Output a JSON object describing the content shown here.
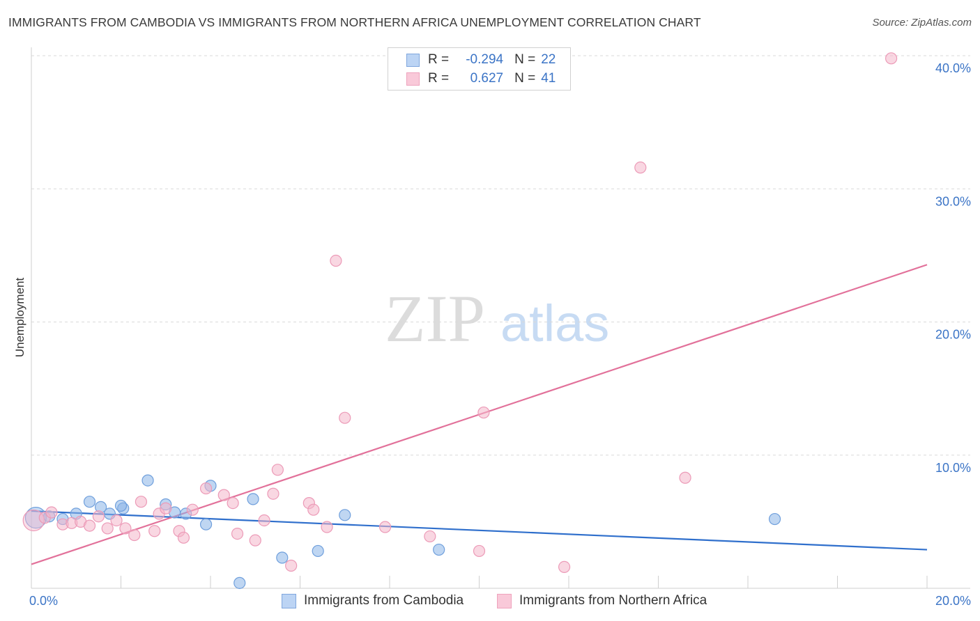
{
  "header": {
    "title": "IMMIGRANTS FROM CAMBODIA VS IMMIGRANTS FROM NORTHERN AFRICA UNEMPLOYMENT CORRELATION CHART",
    "source": "Source: ZipAtlas.com"
  },
  "watermark": {
    "part1": "ZIP",
    "part2": "atlas"
  },
  "stats_legend": {
    "rows": [
      {
        "r_label": "R =",
        "r_value": "-0.294",
        "n_label": "N =",
        "n_value": "22"
      },
      {
        "r_label": "R =",
        "r_value": "0.627",
        "n_label": "N =",
        "n_value": "41"
      }
    ]
  },
  "chart_data": {
    "type": "scatter",
    "title": "IMMIGRANTS FROM CAMBODIA VS IMMIGRANTS FROM NORTHERN AFRICA UNEMPLOYMENT CORRELATION CHART",
    "xlabel": "",
    "ylabel": "Unemployment",
    "xlim": [
      0,
      20
    ],
    "ylim": [
      0,
      40
    ],
    "x_tick_labels": [
      "0.0%",
      "20.0%"
    ],
    "y_ticks": [
      10,
      20,
      30,
      40
    ],
    "y_tick_labels": [
      "10.0%",
      "20.0%",
      "30.0%",
      "40.0%"
    ],
    "grid": true,
    "legend_placement": "bottom-center",
    "series": [
      {
        "name": "Immigrants from Cambodia",
        "color": "#8ab4e8",
        "stroke": "#6f9fdc",
        "trend_color": "#2f6fcc",
        "R": -0.294,
        "N": 22,
        "trend": {
          "x": [
            0,
            20
          ],
          "y": [
            5.8,
            2.9
          ]
        },
        "points": [
          {
            "x": 0.1,
            "y": 5.3,
            "big": true
          },
          {
            "x": 0.7,
            "y": 5.2
          },
          {
            "x": 1.0,
            "y": 5.6
          },
          {
            "x": 1.3,
            "y": 6.5
          },
          {
            "x": 1.55,
            "y": 6.1
          },
          {
            "x": 1.75,
            "y": 5.6
          },
          {
            "x": 2.05,
            "y": 6.0
          },
          {
            "x": 2.6,
            "y": 8.1
          },
          {
            "x": 2.0,
            "y": 6.2
          },
          {
            "x": 3.0,
            "y": 6.3
          },
          {
            "x": 3.2,
            "y": 5.7
          },
          {
            "x": 3.45,
            "y": 5.6
          },
          {
            "x": 3.9,
            "y": 4.8
          },
          {
            "x": 4.0,
            "y": 7.7
          },
          {
            "x": 4.95,
            "y": 6.7
          },
          {
            "x": 5.6,
            "y": 2.3
          },
          {
            "x": 6.4,
            "y": 2.8
          },
          {
            "x": 7.0,
            "y": 5.5
          },
          {
            "x": 9.1,
            "y": 2.9
          },
          {
            "x": 16.6,
            "y": 5.2
          },
          {
            "x": 4.65,
            "y": 0.4
          },
          {
            "x": 0.4,
            "y": 5.4
          }
        ]
      },
      {
        "name": "Immigrants from Northern Africa",
        "color": "#f4b6cb",
        "stroke": "#ec9ab7",
        "trend_color": "#e2719a",
        "R": 0.627,
        "N": 41,
        "trend": {
          "x": [
            0,
            20
          ],
          "y": [
            1.8,
            24.3
          ]
        },
        "points": [
          {
            "x": 0.05,
            "y": 5.1,
            "big": true
          },
          {
            "x": 0.3,
            "y": 5.3
          },
          {
            "x": 0.45,
            "y": 5.7
          },
          {
            "x": 0.7,
            "y": 4.8
          },
          {
            "x": 0.9,
            "y": 4.9
          },
          {
            "x": 1.1,
            "y": 5.0
          },
          {
            "x": 1.3,
            "y": 4.7
          },
          {
            "x": 1.5,
            "y": 5.4
          },
          {
            "x": 1.7,
            "y": 4.5
          },
          {
            "x": 1.9,
            "y": 5.1
          },
          {
            "x": 2.1,
            "y": 4.5
          },
          {
            "x": 2.3,
            "y": 4.0
          },
          {
            "x": 2.45,
            "y": 6.5
          },
          {
            "x": 2.75,
            "y": 4.3
          },
          {
            "x": 2.85,
            "y": 5.6
          },
          {
            "x": 3.0,
            "y": 6.0
          },
          {
            "x": 3.3,
            "y": 4.3
          },
          {
            "x": 3.4,
            "y": 3.8
          },
          {
            "x": 3.6,
            "y": 5.9
          },
          {
            "x": 3.9,
            "y": 7.5
          },
          {
            "x": 4.3,
            "y": 7.0
          },
          {
            "x": 4.5,
            "y": 6.4
          },
          {
            "x": 4.6,
            "y": 4.1
          },
          {
            "x": 5.0,
            "y": 3.6
          },
          {
            "x": 5.2,
            "y": 5.1
          },
          {
            "x": 5.4,
            "y": 7.1
          },
          {
            "x": 5.5,
            "y": 8.9
          },
          {
            "x": 5.8,
            "y": 1.7
          },
          {
            "x": 6.2,
            "y": 6.4
          },
          {
            "x": 6.3,
            "y": 5.9
          },
          {
            "x": 6.6,
            "y": 4.6
          },
          {
            "x": 6.8,
            "y": 24.6
          },
          {
            "x": 7.0,
            "y": 12.8
          },
          {
            "x": 7.9,
            "y": 4.6
          },
          {
            "x": 8.9,
            "y": 3.9
          },
          {
            "x": 10.0,
            "y": 2.8
          },
          {
            "x": 10.1,
            "y": 13.2
          },
          {
            "x": 11.9,
            "y": 1.6
          },
          {
            "x": 13.6,
            "y": 31.6
          },
          {
            "x": 14.6,
            "y": 8.3
          },
          {
            "x": 19.2,
            "y": 39.8
          }
        ]
      }
    ]
  }
}
